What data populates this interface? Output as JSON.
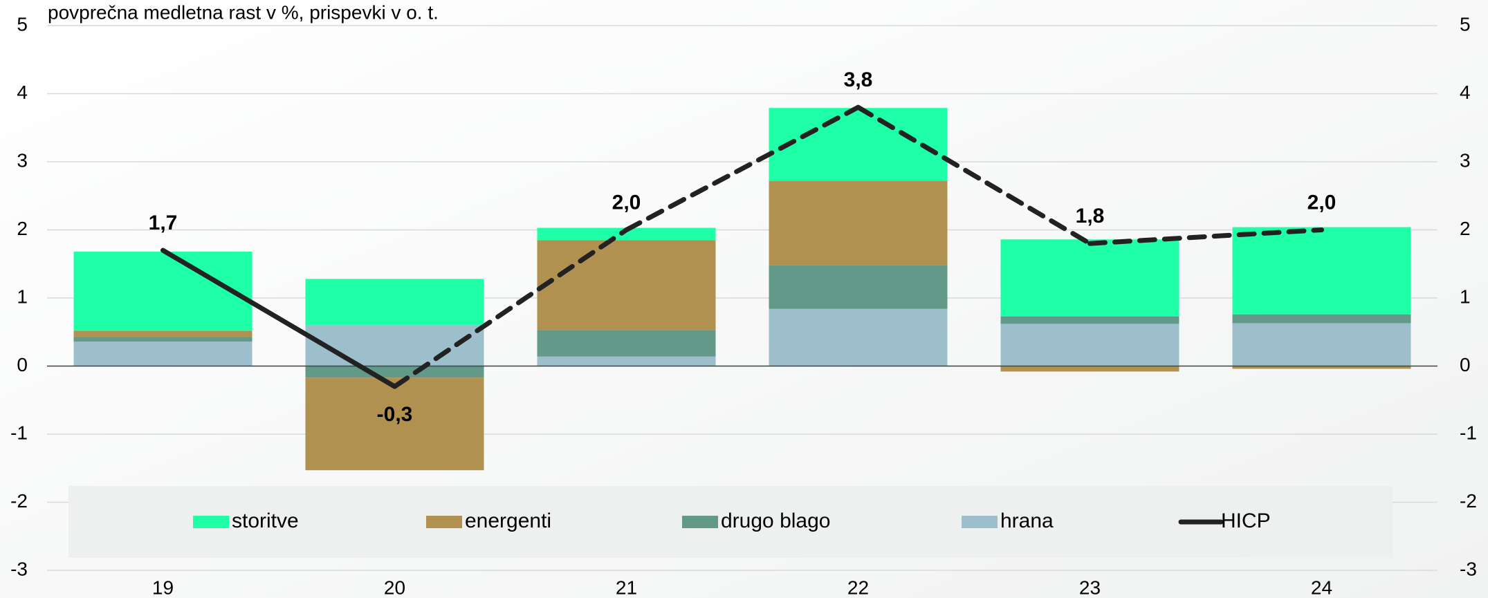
{
  "chart_data": {
    "type": "stacked_bar_line",
    "title": "povprečna medletna rast v %, prispevki v o. t.",
    "categories": [
      "19",
      "20",
      "21",
      "22",
      "23",
      "24"
    ],
    "series": [
      {
        "name": "storitve",
        "color": "#1effa8",
        "values": [
          1.16,
          0.68,
          0.18,
          1.07,
          1.13,
          1.28
        ]
      },
      {
        "name": "energenti",
        "color": "#b0914f",
        "values": [
          0.09,
          -1.36,
          1.32,
          1.24,
          -0.08,
          -0.04
        ]
      },
      {
        "name": "drugo blago",
        "color": "#639988",
        "values": [
          0.07,
          -0.17,
          0.39,
          0.64,
          0.11,
          0.13
        ]
      },
      {
        "name": "hrana",
        "color": "#9dbfcc",
        "values": [
          0.36,
          0.6,
          0.14,
          0.84,
          0.62,
          0.63
        ]
      },
      {
        "name": "HICP",
        "type": "line",
        "color": "#222222",
        "dashed_from_category": "20",
        "values": [
          1.7,
          -0.3,
          2.0,
          3.8,
          1.8,
          2.0
        ],
        "value_labels": [
          "1,7",
          "-0,3",
          "2,0",
          "3,8",
          "1,8",
          "2,0"
        ]
      }
    ],
    "ylim": [
      -3,
      5
    ],
    "yticks": [
      -3,
      -2,
      -1,
      0,
      1,
      2,
      3,
      4,
      5
    ],
    "y2lim": [
      -3,
      5
    ],
    "y2ticks": [
      -3,
      -2,
      -1,
      0,
      1,
      2,
      3,
      4,
      5
    ],
    "grid": true,
    "legend": "bottom"
  }
}
